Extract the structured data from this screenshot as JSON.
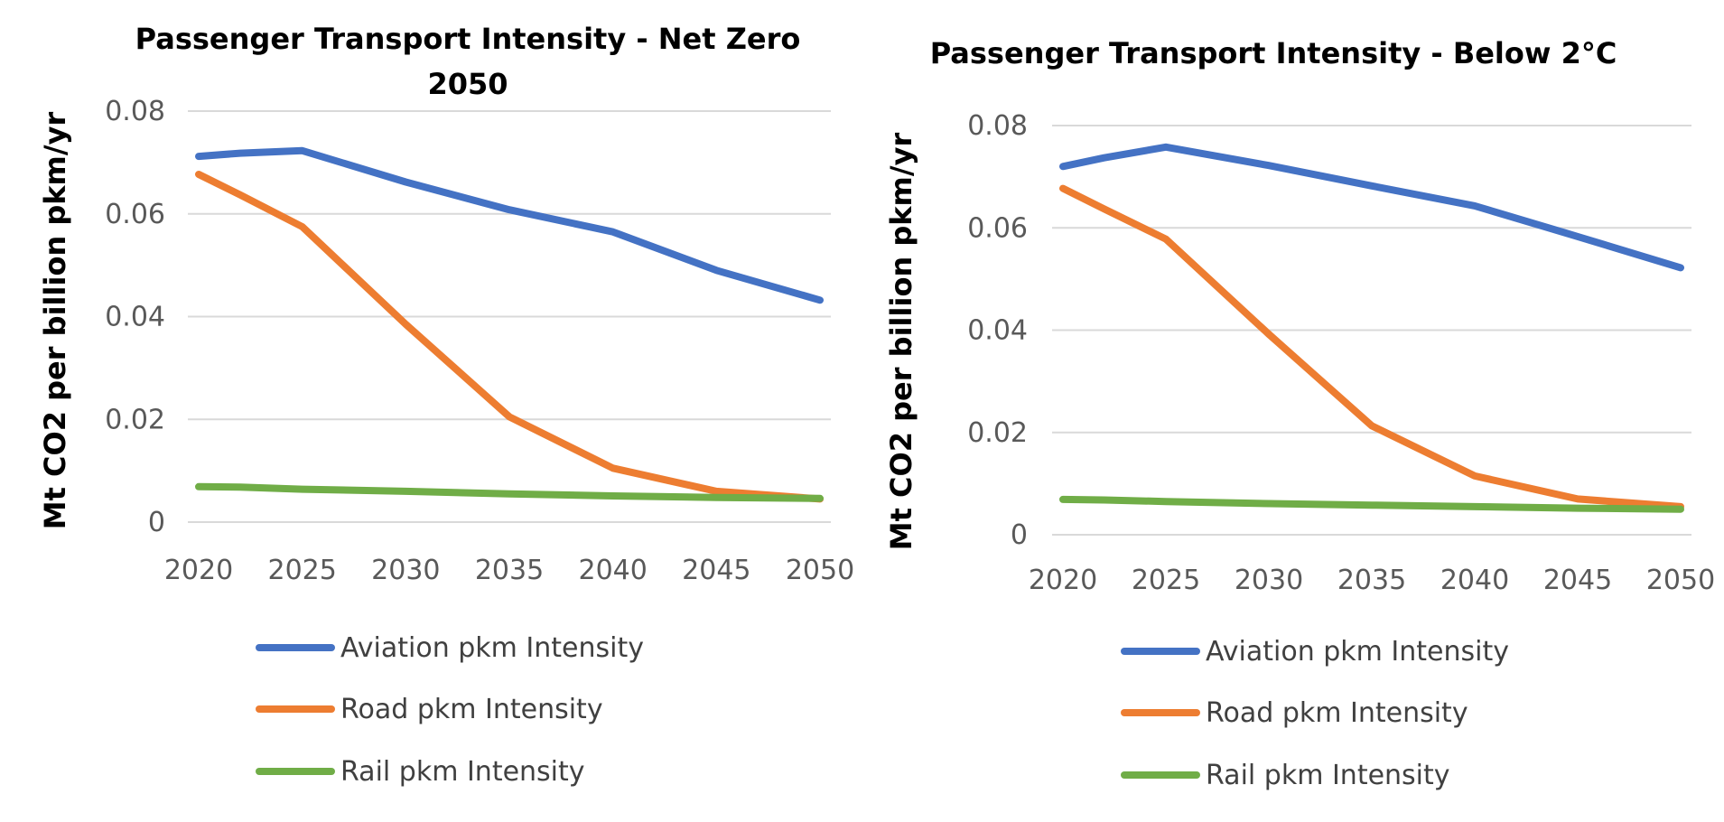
{
  "colors": {
    "aviation": "#4472C4",
    "road": "#ED7D31",
    "rail": "#70AD47"
  },
  "chart_data": [
    {
      "type": "line",
      "title_lines": [
        "Passenger Transport Intensity - Net Zero",
        "2050"
      ],
      "xlabel": "",
      "ylabel": "Mt CO2 per billion pkm/yr",
      "x": [
        2020,
        2022,
        2025,
        2030,
        2035,
        2040,
        2045,
        2050
      ],
      "ylim": [
        0,
        0.08
      ],
      "yticks": [
        "0",
        "0.02",
        "0.04",
        "0.06",
        "0.08"
      ],
      "xticks": [
        "2020",
        "2025",
        "2030",
        "2035",
        "2040",
        "2045",
        "2050"
      ],
      "grid": true,
      "legend_position": "bottom",
      "series": [
        {
          "name": "Aviation pkm Intensity",
          "color_key": "aviation",
          "values": [
            0.0712,
            0.0718,
            0.0723,
            0.0662,
            0.0608,
            0.0565,
            0.049,
            0.0432
          ]
        },
        {
          "name": "Road pkm Intensity",
          "color_key": "road",
          "values": [
            0.0677,
            0.0637,
            0.0575,
            0.0385,
            0.0205,
            0.0105,
            0.006,
            0.0045
          ]
        },
        {
          "name": "Rail pkm Intensity",
          "color_key": "rail",
          "values": [
            0.0069,
            0.0068,
            0.0064,
            0.006,
            0.0055,
            0.0051,
            0.0048,
            0.0046
          ]
        }
      ]
    },
    {
      "type": "line",
      "title_lines": [
        "Passenger Transport Intensity - Below 2°C"
      ],
      "xlabel": "",
      "ylabel": "Mt CO2 per billion pkm/yr",
      "x": [
        2020,
        2022,
        2025,
        2030,
        2035,
        2040,
        2045,
        2050
      ],
      "ylim": [
        0,
        0.08
      ],
      "yticks": [
        "0",
        "0.02",
        "0.04",
        "0.06",
        "0.08"
      ],
      "xticks": [
        "2020",
        "2025",
        "2030",
        "2035",
        "2040",
        "2045",
        "2050"
      ],
      "grid": true,
      "legend_position": "bottom",
      "series": [
        {
          "name": "Aviation pkm Intensity",
          "color_key": "aviation",
          "values": [
            0.072,
            0.0737,
            0.0758,
            0.0722,
            0.0682,
            0.0643,
            0.0583,
            0.0522
          ]
        },
        {
          "name": "Road pkm Intensity",
          "color_key": "road",
          "values": [
            0.0677,
            0.0637,
            0.0578,
            0.0392,
            0.0213,
            0.0115,
            0.007,
            0.0055
          ]
        },
        {
          "name": "Rail pkm Intensity",
          "color_key": "rail",
          "values": [
            0.0069,
            0.0068,
            0.0065,
            0.0061,
            0.0058,
            0.0055,
            0.0052,
            0.005
          ]
        }
      ]
    }
  ]
}
